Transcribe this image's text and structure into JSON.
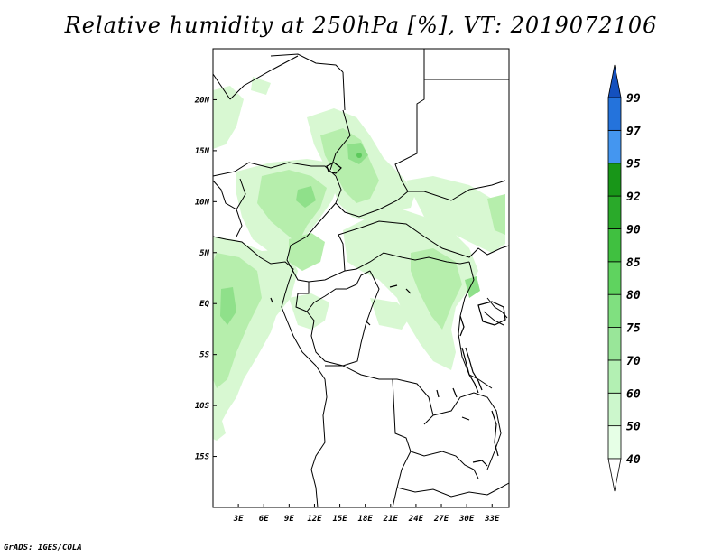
{
  "title": "Relative humidity at 250hPa [%], VT: 2019072106",
  "credit": "GrADS: IGES/COLA",
  "map": {
    "lon_range": [
      0,
      35
    ],
    "lat_range": [
      -20,
      25
    ],
    "y_ticks": [
      {
        "lat": 20,
        "label": "20N"
      },
      {
        "lat": 15,
        "label": "15N"
      },
      {
        "lat": 10,
        "label": "10N"
      },
      {
        "lat": 5,
        "label": "5N"
      },
      {
        "lat": 0,
        "label": "EQ"
      },
      {
        "lat": -5,
        "label": "5S"
      },
      {
        "lat": -10,
        "label": "10S"
      },
      {
        "lat": -15,
        "label": "15S"
      }
    ],
    "x_ticks": [
      {
        "lon": 3,
        "label": "3E"
      },
      {
        "lon": 6,
        "label": "6E"
      },
      {
        "lon": 9,
        "label": "9E"
      },
      {
        "lon": 12,
        "label": "12E"
      },
      {
        "lon": 15,
        "label": "15E"
      },
      {
        "lon": 18,
        "label": "18E"
      },
      {
        "lon": 21,
        "label": "21E"
      },
      {
        "lon": 24,
        "label": "24E"
      },
      {
        "lon": 27,
        "label": "27E"
      },
      {
        "lon": 30,
        "label": "30E"
      },
      {
        "lon": 33,
        "label": "33E"
      }
    ]
  },
  "colorbar": {
    "levels": [
      "40",
      "50",
      "60",
      "70",
      "75",
      "80",
      "85",
      "90",
      "92",
      "95",
      "97",
      "99"
    ],
    "colors": [
      "#ffffff",
      "#e6ffe6",
      "#ccf7cc",
      "#b3f0b3",
      "#99e699",
      "#80e080",
      "#5fd35f",
      "#40c040",
      "#2aaa2a",
      "#189618",
      "#4496f0",
      "#2473dc",
      "#1450be"
    ]
  },
  "humidity_colors": {
    "light": "#d8f8d2",
    "medium": "#b6eeac",
    "strong": "#8fe08a",
    "peak": "#5cc95c"
  }
}
